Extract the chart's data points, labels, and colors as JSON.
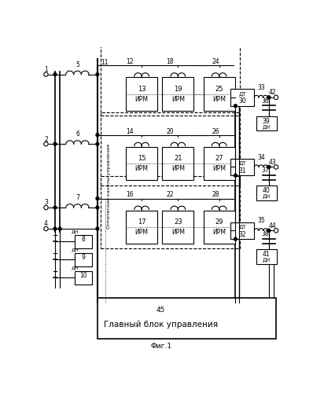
{
  "title": "Фиг.1",
  "bg_color": "#ffffff",
  "line_color": "#000000",
  "main_block_label": "45",
  "main_block_text": "Главный блок управления",
  "optical_label": "Оптические каналы управления"
}
